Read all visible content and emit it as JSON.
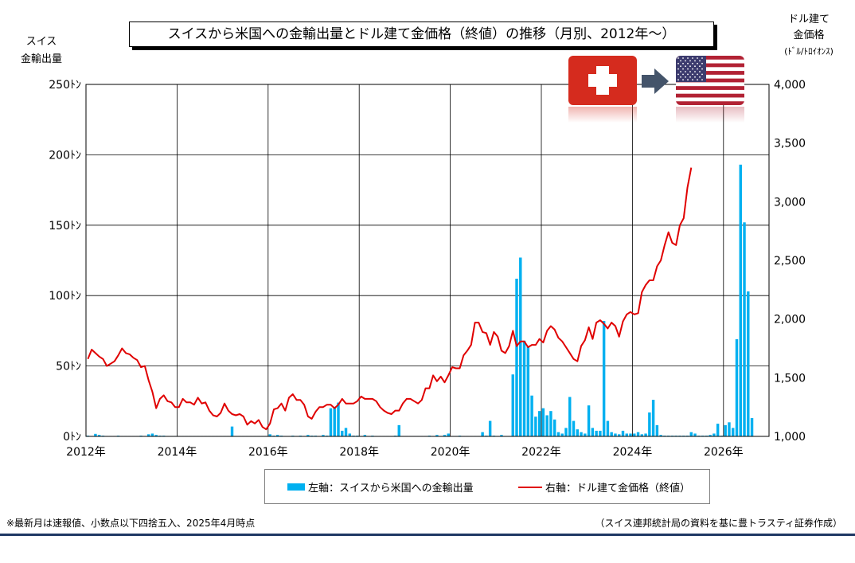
{
  "title": "スイスから米国への金輸出量とドル建て金価格（終値）の推移（月別、2012年～）",
  "left_axis_title_line1": "スイス",
  "left_axis_title_line2": "金輸出量",
  "right_axis_title_line1": "ドル建て",
  "right_axis_title_line2": "金価格",
  "right_axis_title_line3": "(ﾄﾞﾙ/ﾄﾛｲｵﾝｽ)",
  "footnote_left": "※最新月は速報値、小数点以下四捨五入、2025年4月時点",
  "footnote_right": "（スイス連邦統計局の資料を基に豊トラスティ証券作成）",
  "flags": {
    "from": "switzerland-flag",
    "to": "usa-flag",
    "swiss_red": "#d52b1e",
    "arrow_color": "#44546a"
  },
  "chart_data": {
    "type": "bar+line",
    "xlim": [
      "2012-01",
      "2027-01"
    ],
    "x_ticks": [
      "2012年",
      "2014年",
      "2016年",
      "2018年",
      "2020年",
      "2022年",
      "2024年",
      "2026年"
    ],
    "left_axis": {
      "range": [
        0,
        250
      ],
      "ticks": [
        0,
        50,
        100,
        150,
        200,
        250
      ],
      "tick_labels": [
        "0ﾄﾝ",
        "50ﾄﾝ",
        "100ﾄﾝ",
        "150ﾄﾝ",
        "200ﾄﾝ",
        "250ﾄﾝ"
      ]
    },
    "right_axis": {
      "range": [
        1000,
        4000
      ],
      "ticks": [
        1000,
        1500,
        2000,
        2500,
        3000,
        3500,
        4000
      ],
      "tick_labels": [
        "1,000",
        "1,500",
        "2,000",
        "2,500",
        "3,000",
        "3,500",
        "4,000"
      ]
    },
    "grid": true,
    "legend_placement": "bottom",
    "series": [
      {
        "name": "左軸：スイスから米国への金輸出量",
        "type": "bar",
        "axis": "left",
        "color": "#00b0f0",
        "start": "2012-01",
        "values": [
          0.5,
          0.3,
          1.8,
          1.0,
          0.5,
          0.3,
          0.3,
          0.3,
          0.5,
          0.3,
          0.3,
          0.3,
          0.3,
          0.3,
          0.5,
          0.3,
          1.5,
          2.0,
          1.0,
          0.5,
          0.5,
          0.3,
          0.3,
          0.3,
          0.3,
          0.3,
          0.3,
          0.3,
          0.3,
          0.3,
          0.3,
          0.3,
          0.3,
          0.3,
          0.3,
          0.3,
          0.3,
          0.3,
          7.0,
          0.3,
          0.3,
          0.3,
          0.3,
          0.3,
          0.3,
          0.3,
          0.3,
          0.3,
          1.5,
          0.5,
          1.0,
          0.5,
          0.3,
          0.3,
          0.5,
          0.3,
          0.5,
          0.3,
          1.0,
          0.5,
          0.5,
          0.3,
          1.0,
          0.5,
          20.0,
          21.0,
          24.0,
          4.0,
          6.0,
          2.0,
          0.5,
          0.5,
          0.3,
          1.0,
          0.3,
          0.5,
          0.3,
          0.3,
          0.3,
          0.3,
          0.3,
          0.5,
          8.0,
          0.3,
          0.3,
          0.3,
          0.3,
          0.3,
          0.3,
          0.3,
          0.5,
          0.3,
          1.0,
          0.3,
          1.0,
          2.0,
          0.3,
          0.3,
          0.5,
          0.3,
          0.3,
          0.3,
          0.3,
          0.3,
          3.0,
          0.5,
          11.0,
          0.5,
          0.3,
          1.0,
          0.3,
          0.3,
          44.0,
          112.0,
          127.0,
          68.0,
          64.0,
          29.0,
          14.0,
          18.0,
          20.0,
          15.0,
          18.0,
          12.0,
          3.0,
          2.0,
          6.0,
          28.0,
          11.0,
          5.0,
          3.0,
          2.0,
          22.0,
          6.0,
          4.0,
          4.0,
          82.0,
          11.0,
          3.0,
          2.0,
          1.5,
          4.0,
          2.0,
          2.0,
          2.0,
          3.0,
          1.5,
          2.0,
          17.0,
          26.0,
          8.0,
          1.0,
          0.5,
          0.5,
          0.5,
          0.5,
          0.5,
          0.5,
          0.5,
          3.0,
          2.0,
          0.5,
          0.5,
          0.5,
          1.0,
          2.0,
          9.0,
          0.5,
          8.0,
          10.0,
          6.0,
          69.0,
          193.0,
          152.0,
          103.0,
          13.0
        ]
      },
      {
        "name": "右軸：ドル建て金価格（終値）",
        "type": "line",
        "axis": "right",
        "color": "#e00000",
        "start": "2012-01",
        "values": [
          1660,
          1740,
          1710,
          1680,
          1660,
          1600,
          1620,
          1640,
          1690,
          1750,
          1710,
          1700,
          1670,
          1650,
          1590,
          1600,
          1480,
          1380,
          1240,
          1320,
          1350,
          1300,
          1290,
          1250,
          1250,
          1320,
          1290,
          1290,
          1270,
          1330,
          1280,
          1290,
          1220,
          1180,
          1170,
          1200,
          1280,
          1220,
          1190,
          1180,
          1190,
          1170,
          1100,
          1130,
          1110,
          1140,
          1080,
          1060,
          1110,
          1230,
          1240,
          1280,
          1220,
          1330,
          1360,
          1310,
          1310,
          1270,
          1170,
          1150,
          1210,
          1250,
          1250,
          1270,
          1270,
          1240,
          1270,
          1320,
          1280,
          1280,
          1280,
          1300,
          1340,
          1320,
          1320,
          1320,
          1300,
          1250,
          1220,
          1200,
          1190,
          1220,
          1220,
          1280,
          1320,
          1320,
          1300,
          1280,
          1310,
          1410,
          1410,
          1520,
          1470,
          1510,
          1460,
          1520,
          1590,
          1580,
          1580,
          1690,
          1730,
          1780,
          1970,
          1970,
          1890,
          1880,
          1780,
          1890,
          1850,
          1730,
          1710,
          1770,
          1900,
          1770,
          1810,
          1810,
          1760,
          1780,
          1780,
          1830,
          1800,
          1900,
          1940,
          1910,
          1840,
          1810,
          1760,
          1710,
          1660,
          1640,
          1770,
          1820,
          1930,
          1830,
          1970,
          1990,
          1960,
          1920,
          1970,
          1940,
          1850,
          1980,
          2040,
          2060,
          2040,
          2050,
          2230,
          2290,
          2330,
          2330,
          2450,
          2500,
          2630,
          2740,
          2650,
          2630,
          2800,
          2860,
          3120,
          3290
        ]
      }
    ]
  }
}
